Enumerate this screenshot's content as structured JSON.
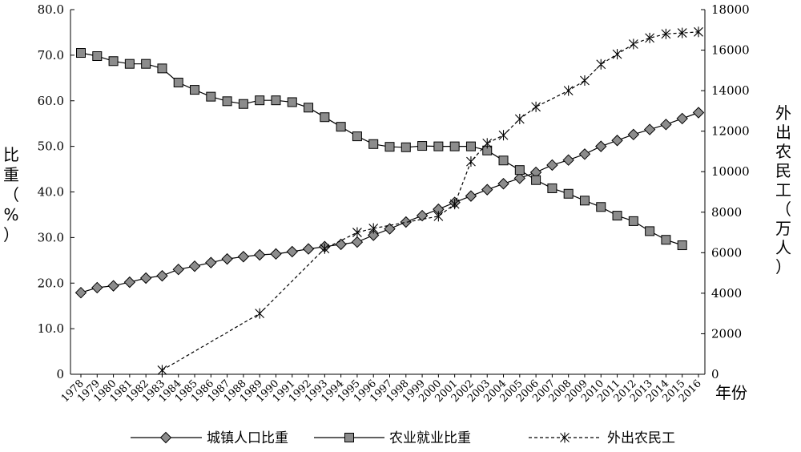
{
  "chart_data": {
    "type": "line",
    "x_label": "年份",
    "y_left_label": [
      "比",
      "重",
      "（",
      "%",
      "）"
    ],
    "y_right_label": [
      "外",
      "出",
      "农",
      "民",
      "工",
      "（",
      "万",
      "人",
      "）"
    ],
    "y_left_range": [
      0,
      80
    ],
    "y_left_ticks": [
      "0",
      "10.0",
      "20.0",
      "30.0",
      "40.0",
      "50.0",
      "60.0",
      "70.0",
      "80.0"
    ],
    "y_right_range": [
      0,
      18000
    ],
    "y_right_ticks": [
      "0",
      "2000",
      "4000",
      "6000",
      "8000",
      "10000",
      "12000",
      "14000",
      "16000",
      "18000"
    ],
    "categories": [
      "1978",
      "1979",
      "1980",
      "1981",
      "1982",
      "1983",
      "1984",
      "1985",
      "1986",
      "1987",
      "1988",
      "1989",
      "1990",
      "1991",
      "1992",
      "1993",
      "1994",
      "1995",
      "1996",
      "1997",
      "1998",
      "1999",
      "2000",
      "2001",
      "2002",
      "2003",
      "2004",
      "2005",
      "2006",
      "2007",
      "2008",
      "2009",
      "2010",
      "2011",
      "2012",
      "2013",
      "2014",
      "2015",
      "2016"
    ],
    "grid": false,
    "legend_position": "bottom",
    "series": [
      {
        "name": "城镇人口比重",
        "axis": "left",
        "marker": "diamond",
        "line": "solid",
        "values": [
          17.9,
          19.0,
          19.4,
          20.2,
          21.1,
          21.6,
          23.0,
          23.7,
          24.5,
          25.3,
          25.8,
          26.2,
          26.4,
          26.9,
          27.5,
          28.0,
          28.5,
          29.0,
          30.5,
          31.9,
          33.4,
          34.8,
          36.2,
          37.7,
          39.1,
          40.5,
          41.8,
          43.0,
          44.3,
          45.9,
          47.0,
          48.3,
          50.0,
          51.3,
          52.6,
          53.7,
          54.8,
          56.1,
          57.4
        ]
      },
      {
        "name": "农业就业比重",
        "axis": "left",
        "marker": "square",
        "line": "solid",
        "values": [
          70.5,
          69.8,
          68.7,
          68.1,
          68.1,
          67.1,
          64.0,
          62.4,
          60.9,
          59.9,
          59.3,
          60.1,
          60.1,
          59.7,
          58.5,
          56.4,
          54.3,
          52.2,
          50.5,
          49.9,
          49.8,
          50.1,
          50.0,
          50.0,
          50.0,
          49.1,
          46.9,
          44.8,
          42.6,
          40.8,
          39.6,
          38.1,
          36.7,
          34.8,
          33.6,
          31.4,
          29.5,
          28.3,
          null
        ]
      },
      {
        "name": "外出农民工",
        "axis": "right",
        "marker": "asterisk",
        "line": "dashed",
        "values": [
          null,
          null,
          null,
          null,
          null,
          200,
          null,
          null,
          null,
          null,
          null,
          3000,
          null,
          null,
          null,
          6200,
          null,
          7000,
          7200,
          null,
          null,
          null,
          7800,
          8400,
          10500,
          11400,
          11800,
          12600,
          13200,
          null,
          14000,
          14500,
          15300,
          15800,
          16300,
          16600,
          16800,
          16850,
          16900
        ]
      }
    ]
  }
}
